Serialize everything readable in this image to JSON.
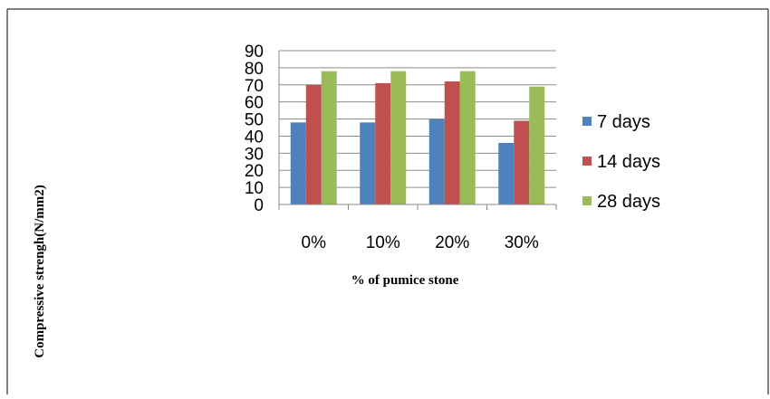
{
  "chart_data": {
    "type": "bar",
    "categories": [
      "0%",
      "10%",
      "20%",
      "30%"
    ],
    "series": [
      {
        "name": "7 days",
        "values": [
          48,
          48,
          50,
          36
        ],
        "color": "#4F81BD"
      },
      {
        "name": "14 days",
        "values": [
          70,
          71,
          72,
          49
        ],
        "color": "#C0504D"
      },
      {
        "name": "28 days",
        "values": [
          78,
          78,
          78,
          69
        ],
        "color": "#9BBB59"
      }
    ],
    "yticks": [
      "0",
      "10",
      "20",
      "30",
      "40",
      "50",
      "60",
      "70",
      "80",
      "90"
    ],
    "ylim": [
      0,
      90
    ],
    "xlabel": "% of pumice stone",
    "ylabel": "Compressive strengh(N/mm2)",
    "grid": true,
    "legend": "right"
  }
}
